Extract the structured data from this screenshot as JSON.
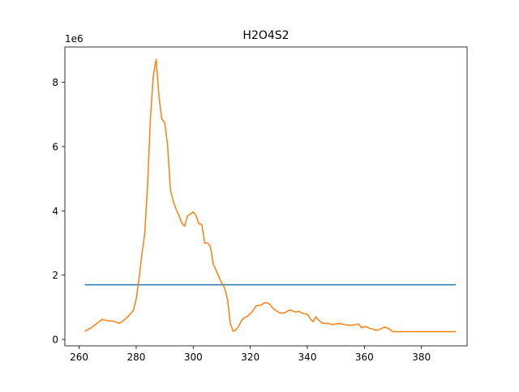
{
  "chart_data": {
    "type": "line",
    "title": "H2O4S2",
    "xlabel": "",
    "ylabel": "",
    "y_offset_label": "1e6",
    "xlim": [
      255,
      396
    ],
    "ylim": [
      -0.2,
      9.1
    ],
    "y_scale_multiplier": 1000000,
    "grid": false,
    "x_ticks": [
      260,
      280,
      300,
      320,
      340,
      360,
      380
    ],
    "y_ticks": [
      0,
      2,
      4,
      6,
      8
    ],
    "series": [
      {
        "color": "#1f77b4",
        "x": [
          262,
          392
        ],
        "y": [
          1.7,
          1.7
        ]
      },
      {
        "color": "#ff7f0e",
        "x": [
          262,
          264,
          266,
          268,
          270,
          272,
          274,
          275,
          277,
          279,
          280,
          281,
          282,
          283,
          284,
          285,
          286,
          287,
          288,
          289,
          290,
          291,
          292,
          293,
          294,
          295,
          296,
          297,
          298,
          299,
          300,
          301,
          302,
          303,
          304,
          305,
          306,
          307,
          308,
          309,
          310,
          311,
          312,
          313,
          314,
          315,
          316,
          317,
          318,
          319,
          320,
          321,
          322,
          323,
          324,
          325,
          326,
          327,
          328,
          329,
          330,
          331,
          332,
          333,
          334,
          335,
          336,
          337,
          338,
          339,
          340,
          341,
          342,
          343,
          344,
          345,
          346,
          347,
          348,
          349,
          350,
          351,
          352,
          353,
          354,
          355,
          356,
          357,
          358,
          359,
          360,
          361,
          362,
          363,
          364,
          365,
          366,
          367,
          368,
          369,
          370,
          371,
          372,
          373,
          374,
          375,
          376,
          377,
          378,
          379,
          380,
          381,
          382,
          383,
          384,
          385,
          386,
          387,
          388,
          389,
          390,
          391,
          392
        ],
        "y": [
          0.25,
          0.35,
          0.48,
          0.62,
          0.58,
          0.57,
          0.5,
          0.55,
          0.7,
          0.9,
          1.25,
          1.9,
          2.65,
          3.3,
          4.8,
          6.9,
          8.2,
          8.72,
          7.55,
          6.85,
          6.75,
          6.05,
          4.65,
          4.3,
          4.05,
          3.85,
          3.62,
          3.52,
          3.85,
          3.9,
          3.97,
          3.85,
          3.6,
          3.58,
          3.0,
          3.0,
          2.9,
          2.35,
          2.15,
          1.95,
          1.75,
          1.6,
          1.25,
          0.5,
          0.25,
          0.3,
          0.42,
          0.6,
          0.68,
          0.72,
          0.8,
          0.9,
          1.04,
          1.06,
          1.08,
          1.14,
          1.14,
          1.08,
          0.96,
          0.9,
          0.84,
          0.82,
          0.82,
          0.88,
          0.92,
          0.88,
          0.85,
          0.88,
          0.82,
          0.8,
          0.78,
          0.65,
          0.55,
          0.7,
          0.6,
          0.52,
          0.5,
          0.5,
          0.48,
          0.46,
          0.48,
          0.5,
          0.48,
          0.46,
          0.45,
          0.44,
          0.45,
          0.46,
          0.48,
          0.36,
          0.4,
          0.38,
          0.34,
          0.32,
          0.28,
          0.3,
          0.34,
          0.38,
          0.36,
          0.3,
          0.24,
          0.24,
          0.24,
          0.24,
          0.24,
          0.24,
          0.24,
          0.24,
          0.24,
          0.24,
          0.24,
          0.24,
          0.24,
          0.24,
          0.24,
          0.24,
          0.24,
          0.24,
          0.24,
          0.24,
          0.24,
          0.24,
          0.24
        ]
      }
    ]
  }
}
